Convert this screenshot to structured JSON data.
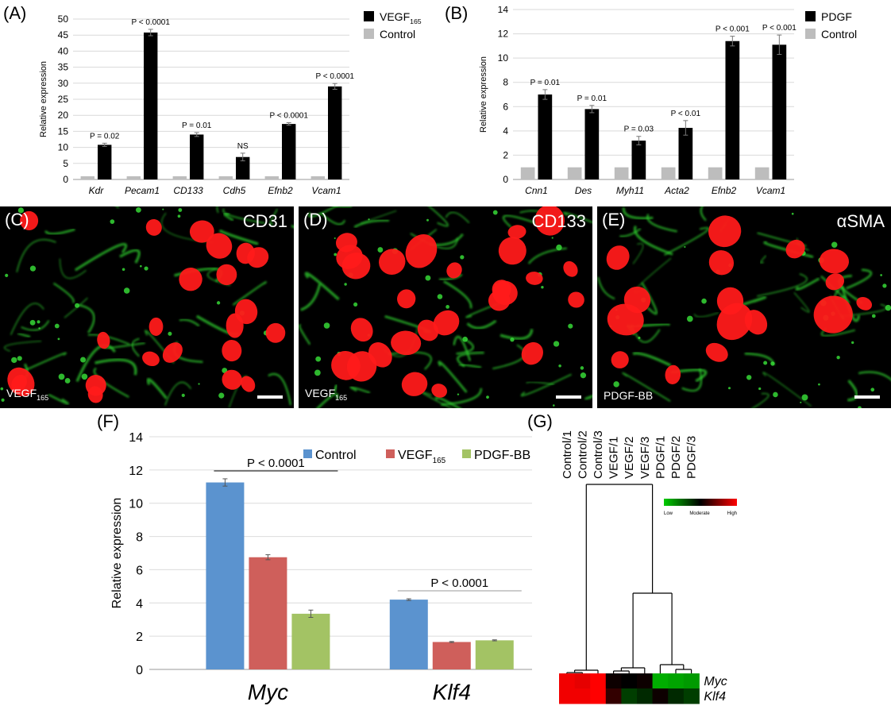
{
  "figure": {
    "panel_labels": [
      "(A)",
      "(B)",
      "(C)",
      "(D)",
      "(E)",
      "(F)",
      "(G)"
    ]
  },
  "chart_data": [
    {
      "id": "A",
      "type": "bar",
      "ylabel": "Relative expression",
      "ylim": [
        0,
        50
      ],
      "yticks": [
        0,
        5,
        10,
        15,
        20,
        25,
        30,
        35,
        40,
        45,
        50
      ],
      "categories": [
        "Kdr",
        "Pecam1",
        "CD133",
        "Cdh5",
        "Efnb2",
        "Vcam1"
      ],
      "series": [
        {
          "name": "Control",
          "color": "#bdbdbd",
          "values": [
            1,
            1,
            1,
            1,
            1,
            1
          ],
          "errors": [
            0,
            0,
            0,
            0,
            0,
            0
          ]
        },
        {
          "name": "VEGF",
          "sub": "165",
          "color": "#000000",
          "values": [
            10.8,
            45.8,
            14.0,
            7.0,
            17.3,
            29.0
          ],
          "errors": [
            0.5,
            1.0,
            0.6,
            1.2,
            0.4,
            0.9
          ]
        }
      ],
      "annotations": [
        "P = 0.02",
        "P < 0.0001",
        "P = 0.01",
        "NS",
        "P < 0.0001",
        "P < 0.0001"
      ],
      "legend_order": [
        "VEGF",
        "Control"
      ]
    },
    {
      "id": "B",
      "type": "bar",
      "ylabel": "Relative expression",
      "ylim": [
        0,
        14
      ],
      "yticks": [
        0,
        2,
        4,
        6,
        8,
        10,
        12,
        14
      ],
      "categories": [
        "Cnn1",
        "Des",
        "Myh11",
        "Acta2",
        "Efnb2",
        "Vcam1"
      ],
      "series": [
        {
          "name": "Control",
          "color": "#bdbdbd",
          "values": [
            1,
            1,
            1,
            1,
            1,
            1
          ],
          "errors": [
            0,
            0,
            0,
            0,
            0,
            0
          ]
        },
        {
          "name": "PDGF",
          "color": "#000000",
          "values": [
            7.0,
            5.8,
            3.2,
            4.25,
            11.4,
            11.1
          ],
          "errors": [
            0.4,
            0.3,
            0.35,
            0.6,
            0.4,
            0.8
          ]
        }
      ],
      "annotations": [
        "P = 0.01",
        "P = 0.01",
        "P = 0.03",
        "P < 0.01",
        "P < 0.001",
        "P < 0.001"
      ],
      "legend_order": [
        "PDGF",
        "Control"
      ]
    },
    {
      "id": "F",
      "type": "bar",
      "ylabel": "Relative expression",
      "ylim": [
        0,
        14
      ],
      "yticks": [
        0,
        2,
        4,
        6,
        8,
        10,
        12,
        14
      ],
      "categories": [
        "Myc",
        "Klf4"
      ],
      "series": [
        {
          "name": "Control",
          "color": "#5b93cf",
          "values": [
            11.25,
            4.2
          ],
          "errors": [
            0.22,
            0.05
          ]
        },
        {
          "name": "VEGF",
          "sub": "165",
          "color": "#cf5f5b",
          "values": [
            6.75,
            1.65
          ],
          "errors": [
            0.15,
            0.03
          ]
        },
        {
          "name": "PDGF-BB",
          "color": "#a3c364",
          "values": [
            3.35,
            1.75
          ],
          "errors": [
            0.22,
            0.03
          ]
        }
      ],
      "brackets": [
        {
          "label": "P < 0.0001",
          "over": "Myc"
        },
        {
          "label": "P < 0.0001",
          "over": "Klf4"
        }
      ]
    },
    {
      "id": "G",
      "type": "heatmap",
      "columns": [
        "Control/1",
        "Control/2",
        "Control/3",
        "VEGF/1",
        "VEGF/2",
        "VEGF/3",
        "PDGF/1",
        "PDGF/2",
        "PDGF/3"
      ],
      "rows": [
        "Myc",
        "Klf4"
      ],
      "values": [
        [
          0.95,
          0.9,
          1.0,
          0.05,
          0.0,
          0.05,
          -0.85,
          -0.8,
          -0.75
        ],
        [
          0.95,
          0.95,
          1.0,
          0.2,
          -0.3,
          -0.2,
          0.05,
          -0.2,
          -0.3
        ]
      ],
      "color_key": {
        "low_label": "Low",
        "mid_label": "Moderate",
        "high_label": "High",
        "low_color": "#00cc00",
        "mid_color": "#000000",
        "high_color": "#ff0000"
      }
    }
  ],
  "micrographs": [
    {
      "id": "C",
      "marker": "CD31",
      "treatment": "VEGF",
      "sub": "165"
    },
    {
      "id": "D",
      "marker": "CD133",
      "treatment": "VEGF",
      "sub": "165"
    },
    {
      "id": "E",
      "marker": "αSMA",
      "treatment": "PDGF-BB",
      "sub": ""
    }
  ]
}
